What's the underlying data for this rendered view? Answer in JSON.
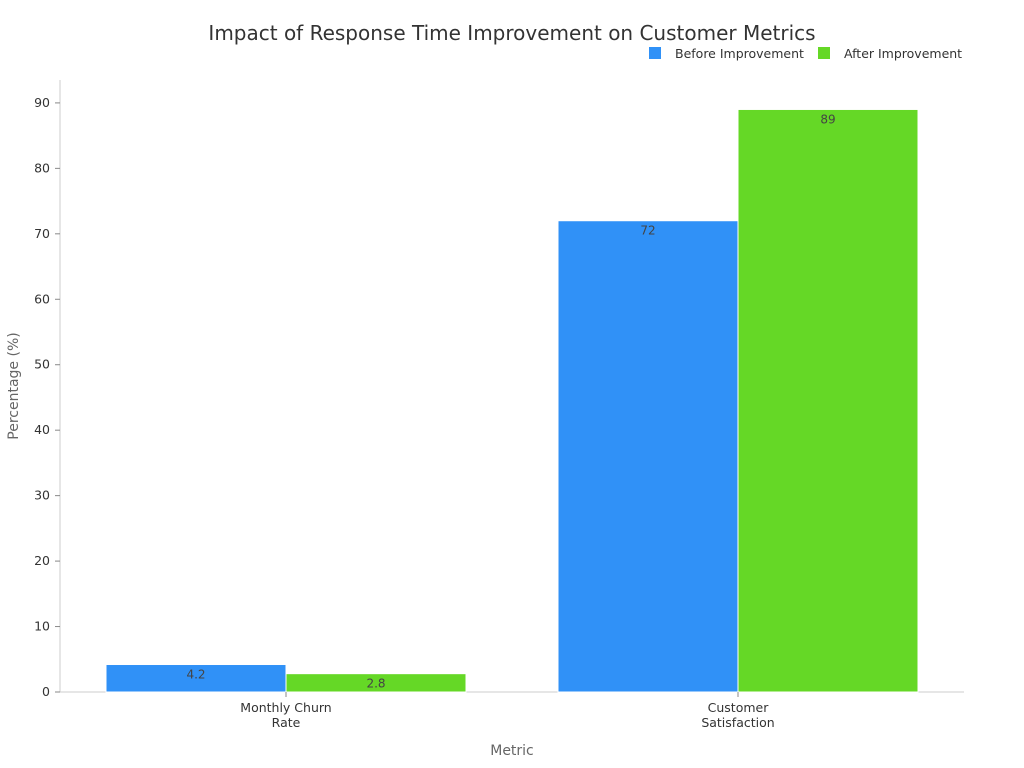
{
  "chart_data": {
    "type": "bar",
    "title": "Impact of Response Time Improvement on Customer Metrics",
    "xlabel": "Metric",
    "ylabel": "Percentage (%)",
    "categories": [
      [
        "Monthly Churn",
        "Rate"
      ],
      [
        "Customer",
        "Satisfaction"
      ]
    ],
    "series": [
      {
        "name": "Before Improvement",
        "color": "#3091f7",
        "values": [
          4.2,
          72
        ]
      },
      {
        "name": "After Improvement",
        "color": "#65d826",
        "values": [
          2.8,
          89
        ]
      }
    ],
    "value_labels": [
      [
        "4.2",
        "72"
      ],
      [
        "2.8",
        "89"
      ]
    ],
    "ylim": [
      0,
      93.5
    ],
    "yticks": [
      0,
      10,
      20,
      30,
      40,
      50,
      60,
      70,
      80,
      90
    ],
    "legend_position": "top-right",
    "grid": false
  }
}
